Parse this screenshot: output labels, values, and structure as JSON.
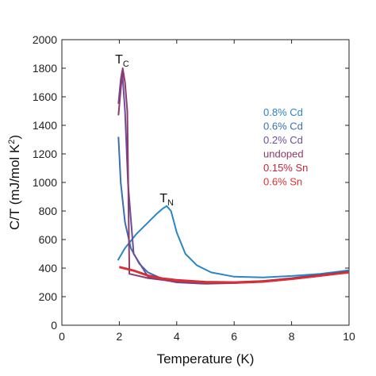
{
  "chart_data": {
    "type": "line",
    "title": "",
    "xlabel": "Temperature (K)",
    "ylabel_main": "C/T (mJ/mol K",
    "ylabel_sup": "2",
    "ylabel_close": ")",
    "xlim": [
      0,
      10
    ],
    "ylim": [
      0,
      2000
    ],
    "xticks": [
      0,
      2,
      4,
      6,
      8,
      10
    ],
    "yticks": [
      0,
      200,
      400,
      600,
      800,
      1000,
      1200,
      1400,
      1600,
      1800,
      2000
    ],
    "grid": false,
    "legend_placement": "right",
    "annotations": [
      {
        "main": "T",
        "sub": "C",
        "x": 2.1,
        "y": 1810
      },
      {
        "main": "T",
        "sub": "N",
        "x": 3.65,
        "y": 840
      }
    ],
    "series": [
      {
        "name": "0.8% Cd",
        "color": "#2a86c4",
        "x": [
          1.95,
          2.2,
          2.6,
          3.0,
          3.3,
          3.5,
          3.65,
          3.8,
          4.0,
          4.3,
          4.7,
          5.2,
          6.0,
          7.0,
          8.0,
          9.0,
          10.0
        ],
        "y": [
          455,
          540,
          640,
          720,
          780,
          815,
          835,
          800,
          650,
          500,
          420,
          370,
          340,
          335,
          345,
          360,
          385
        ]
      },
      {
        "name": "0.6% Cd",
        "color": "#3a6fb0",
        "x": [
          1.97,
          2.05,
          2.2,
          2.4,
          2.7,
          3.0,
          3.5,
          4.0,
          5.0,
          6.0,
          7.0,
          8.0,
          9.0,
          10.0
        ],
        "y": [
          1320,
          1000,
          720,
          540,
          430,
          370,
          325,
          305,
          295,
          300,
          310,
          330,
          355,
          380
        ]
      },
      {
        "name": "0.2% Cd",
        "color": "#6b4f9e",
        "x": [
          1.97,
          2.05,
          2.1,
          2.2,
          2.3,
          2.5,
          3.0,
          4.0,
          5.0,
          6.0,
          7.0,
          8.0,
          9.0,
          10.0
        ],
        "y": [
          1550,
          1720,
          1780,
          1500,
          1000,
          500,
          340,
          300,
          290,
          295,
          305,
          325,
          350,
          375
        ]
      },
      {
        "name": "undoped",
        "color": "#8e3a6a",
        "x": [
          1.97,
          2.05,
          2.12,
          2.2,
          2.28,
          2.35,
          3.0,
          4.0,
          5.0,
          6.0,
          7.0,
          8.0,
          9.0,
          10.0
        ],
        "y": [
          1470,
          1650,
          1800,
          1700,
          1500,
          360,
          330,
          305,
          295,
          295,
          303,
          322,
          345,
          372
        ]
      },
      {
        "name": "0.15% Sn",
        "color": "#c4243a",
        "x": [
          2.0,
          2.5,
          3.0,
          3.5,
          4.0,
          5.0,
          6.0,
          7.0,
          8.0,
          9.0,
          10.0
        ],
        "y": [
          410,
          385,
          350,
          330,
          318,
          305,
          302,
          310,
          328,
          350,
          372
        ]
      },
      {
        "name": "0.6% Sn",
        "color": "#e03030",
        "x": [
          2.0,
          2.5,
          3.0,
          3.5,
          4.0,
          5.0,
          6.0,
          7.0,
          8.0,
          9.0,
          10.0
        ],
        "y": [
          405,
          380,
          345,
          326,
          313,
          300,
          297,
          305,
          322,
          345,
          368
        ]
      }
    ]
  }
}
